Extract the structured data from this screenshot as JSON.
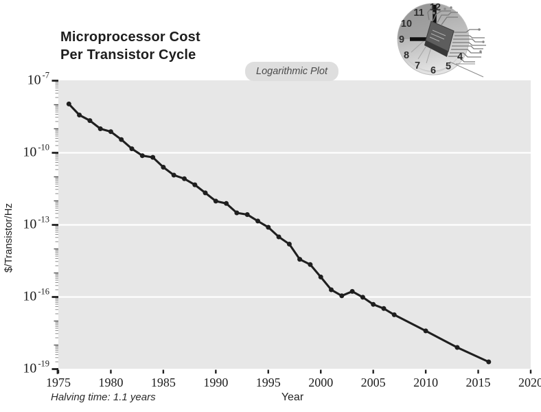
{
  "page": {
    "title_line1": "Microprocessor Cost",
    "title_line2": "Per Transistor Cycle"
  },
  "chart_data": {
    "type": "line",
    "title": "Microprocessor Cost Per Transistor Cycle",
    "xlabel": "Year",
    "ylabel": "$/Transistor/Hz",
    "x_scale": "linear",
    "y_scale": "log10",
    "xlim": [
      1975,
      2020
    ],
    "ylim": [
      "1e-19",
      "1e-7"
    ],
    "x_ticks": [
      1975,
      1980,
      1985,
      1990,
      1995,
      2000,
      2005,
      2010,
      2015,
      2020
    ],
    "y_tick_exponents": [
      -7,
      -10,
      -13,
      -16,
      -19
    ],
    "grid": "horizontal white gridlines at labeled decades on gray plot background",
    "legend": "none",
    "annotations": {
      "badge": "Logarithmic Plot",
      "halving_time": "Halving time: 1.1 years"
    },
    "series": [
      {
        "name": "$/Transistor/Hz",
        "marker": "filled-circle",
        "points_year_log10value": [
          [
            1976,
            -7.97
          ],
          [
            1977,
            -8.43
          ],
          [
            1978,
            -8.66
          ],
          [
            1979,
            -9.0
          ],
          [
            1980,
            -9.12
          ],
          [
            1981,
            -9.45
          ],
          [
            1982,
            -9.83
          ],
          [
            1983,
            -10.12
          ],
          [
            1984,
            -10.19
          ],
          [
            1985,
            -10.6
          ],
          [
            1986,
            -10.93
          ],
          [
            1987,
            -11.08
          ],
          [
            1988,
            -11.33
          ],
          [
            1989,
            -11.67
          ],
          [
            1990,
            -12.01
          ],
          [
            1991,
            -12.11
          ],
          [
            1992,
            -12.5
          ],
          [
            1993,
            -12.57
          ],
          [
            1994,
            -12.84
          ],
          [
            1995,
            -13.1
          ],
          [
            1996,
            -13.5
          ],
          [
            1997,
            -13.8
          ],
          [
            1998,
            -14.43
          ],
          [
            1999,
            -14.65
          ],
          [
            2000,
            -15.17
          ],
          [
            2001,
            -15.7
          ],
          [
            2002,
            -15.95
          ],
          [
            2003,
            -15.77
          ],
          [
            2004,
            -16.01
          ],
          [
            2005,
            -16.31
          ],
          [
            2006,
            -16.48
          ],
          [
            2007,
            -16.74
          ],
          [
            2010,
            -17.41
          ],
          [
            2013,
            -18.1
          ],
          [
            2016,
            -18.7
          ]
        ]
      }
    ],
    "colors": {
      "line": "#1f1f1f",
      "marker": "#1f1f1f",
      "plot_background": "#e7e7e7",
      "gridline": "#ffffff",
      "badge_background": "#dedede"
    }
  },
  "logo": {
    "description": "clock face with microchip and circuit traces, hands at 9:00",
    "numbers": [
      12,
      11,
      10,
      9,
      8,
      7,
      6,
      5,
      4
    ]
  }
}
